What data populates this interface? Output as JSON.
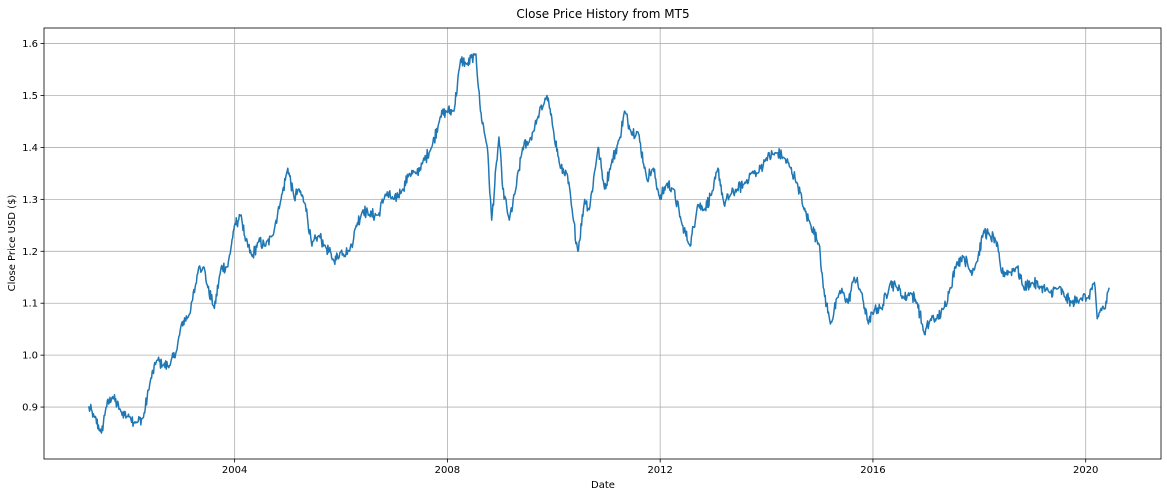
{
  "chart_data": {
    "type": "line",
    "title": "Close Price History from MT5",
    "xlabel": "Date",
    "ylabel": "Close Price USD ($)",
    "grid": true,
    "legend": "none",
    "xlim": [
      "2000-06-01",
      "2021-06-01"
    ],
    "ylim": [
      0.8,
      1.63
    ],
    "x_ticks": [
      "2004",
      "2008",
      "2012",
      "2016",
      "2020"
    ],
    "y_ticks": [
      "0.9",
      "1.0",
      "1.1",
      "1.2",
      "1.3",
      "1.4",
      "1.5",
      "1.6"
    ],
    "series": [
      {
        "color": "#1f77b4",
        "points": [
          [
            "2001-04-01",
            0.9
          ],
          [
            "2001-05-15",
            0.88
          ],
          [
            "2001-07-01",
            0.85
          ],
          [
            "2001-08-01",
            0.9
          ],
          [
            "2001-09-15",
            0.92
          ],
          [
            "2001-11-15",
            0.89
          ],
          [
            "2002-01-15",
            0.88
          ],
          [
            "2002-03-01",
            0.87
          ],
          [
            "2002-04-15",
            0.88
          ],
          [
            "2002-06-01",
            0.95
          ],
          [
            "2002-07-15",
            0.99
          ],
          [
            "2002-09-01",
            0.98
          ],
          [
            "2002-10-15",
            0.98
          ],
          [
            "2002-12-01",
            1.01
          ],
          [
            "2003-01-01",
            1.06
          ],
          [
            "2003-03-01",
            1.08
          ],
          [
            "2003-05-01",
            1.17
          ],
          [
            "2003-06-01",
            1.17
          ],
          [
            "2003-07-01",
            1.13
          ],
          [
            "2003-08-15",
            1.09
          ],
          [
            "2003-10-01",
            1.17
          ],
          [
            "2003-11-15",
            1.17
          ],
          [
            "2003-12-31",
            1.25
          ],
          [
            "2004-02-15",
            1.27
          ],
          [
            "2004-03-15",
            1.22
          ],
          [
            "2004-05-01",
            1.19
          ],
          [
            "2004-06-15",
            1.22
          ],
          [
            "2004-08-01",
            1.21
          ],
          [
            "2004-09-15",
            1.23
          ],
          [
            "2004-11-15",
            1.3
          ],
          [
            "2004-12-31",
            1.36
          ],
          [
            "2005-02-15",
            1.3
          ],
          [
            "2005-03-15",
            1.32
          ],
          [
            "2005-05-01",
            1.29
          ],
          [
            "2005-06-15",
            1.21
          ],
          [
            "2005-08-01",
            1.23
          ],
          [
            "2005-09-15",
            1.21
          ],
          [
            "2005-11-15",
            1.18
          ],
          [
            "2006-01-01",
            1.2
          ],
          [
            "2006-03-01",
            1.2
          ],
          [
            "2006-04-15",
            1.25
          ],
          [
            "2006-06-01",
            1.28
          ],
          [
            "2006-07-15",
            1.27
          ],
          [
            "2006-09-15",
            1.27
          ],
          [
            "2006-11-01",
            1.31
          ],
          [
            "2007-01-01",
            1.3
          ],
          [
            "2007-03-01",
            1.32
          ],
          [
            "2007-04-15",
            1.35
          ],
          [
            "2007-06-01",
            1.35
          ],
          [
            "2007-07-15",
            1.37
          ],
          [
            "2007-09-15",
            1.4
          ],
          [
            "2007-11-15",
            1.46
          ],
          [
            "2007-12-31",
            1.47
          ],
          [
            "2008-02-15",
            1.47
          ],
          [
            "2008-04-01",
            1.57
          ],
          [
            "2008-05-15",
            1.56
          ],
          [
            "2008-07-15",
            1.58
          ],
          [
            "2008-08-15",
            1.47
          ],
          [
            "2008-10-01",
            1.4
          ],
          [
            "2008-10-31",
            1.26
          ],
          [
            "2008-12-20",
            1.42
          ],
          [
            "2009-01-15",
            1.32
          ],
          [
            "2009-03-01",
            1.26
          ],
          [
            "2009-04-15",
            1.32
          ],
          [
            "2009-06-01",
            1.4
          ],
          [
            "2009-07-15",
            1.41
          ],
          [
            "2009-09-15",
            1.46
          ],
          [
            "2009-11-15",
            1.5
          ],
          [
            "2009-12-31",
            1.43
          ],
          [
            "2010-02-15",
            1.36
          ],
          [
            "2010-04-01",
            1.35
          ],
          [
            "2010-05-15",
            1.26
          ],
          [
            "2010-06-15",
            1.2
          ],
          [
            "2010-08-01",
            1.3
          ],
          [
            "2010-09-01",
            1.28
          ],
          [
            "2010-11-01",
            1.4
          ],
          [
            "2010-12-15",
            1.32
          ],
          [
            "2011-02-01",
            1.37
          ],
          [
            "2011-04-01",
            1.42
          ],
          [
            "2011-05-01",
            1.47
          ],
          [
            "2011-06-15",
            1.43
          ],
          [
            "2011-08-01",
            1.43
          ],
          [
            "2011-10-01",
            1.34
          ],
          [
            "2011-11-15",
            1.36
          ],
          [
            "2011-12-31",
            1.3
          ],
          [
            "2012-02-15",
            1.33
          ],
          [
            "2012-04-01",
            1.32
          ],
          [
            "2012-06-01",
            1.25
          ],
          [
            "2012-07-25",
            1.21
          ],
          [
            "2012-09-15",
            1.29
          ],
          [
            "2012-11-01",
            1.28
          ],
          [
            "2013-01-01",
            1.32
          ],
          [
            "2013-02-01",
            1.36
          ],
          [
            "2013-03-15",
            1.29
          ],
          [
            "2013-05-01",
            1.31
          ],
          [
            "2013-06-15",
            1.32
          ],
          [
            "2013-08-01",
            1.33
          ],
          [
            "2013-09-15",
            1.35
          ],
          [
            "2013-11-01",
            1.35
          ],
          [
            "2013-12-31",
            1.38
          ],
          [
            "2014-03-15",
            1.39
          ],
          [
            "2014-05-01",
            1.38
          ],
          [
            "2014-06-15",
            1.36
          ],
          [
            "2014-08-01",
            1.33
          ],
          [
            "2014-09-15",
            1.28
          ],
          [
            "2014-11-01",
            1.25
          ],
          [
            "2014-12-31",
            1.21
          ],
          [
            "2015-01-25",
            1.13
          ],
          [
            "2015-03-15",
            1.06
          ],
          [
            "2015-05-15",
            1.12
          ],
          [
            "2015-06-15",
            1.12
          ],
          [
            "2015-07-15",
            1.1
          ],
          [
            "2015-08-25",
            1.15
          ],
          [
            "2015-10-15",
            1.12
          ],
          [
            "2015-12-01",
            1.06
          ],
          [
            "2016-01-15",
            1.09
          ],
          [
            "2016-03-01",
            1.09
          ],
          [
            "2016-05-01",
            1.14
          ],
          [
            "2016-06-15",
            1.13
          ],
          [
            "2016-08-01",
            1.11
          ],
          [
            "2016-09-15",
            1.12
          ],
          [
            "2016-11-01",
            1.1
          ],
          [
            "2016-12-20",
            1.04
          ],
          [
            "2017-02-01",
            1.07
          ],
          [
            "2017-03-15",
            1.07
          ],
          [
            "2017-05-01",
            1.09
          ],
          [
            "2017-06-15",
            1.13
          ],
          [
            "2017-08-01",
            1.18
          ],
          [
            "2017-09-15",
            1.19
          ],
          [
            "2017-11-01",
            1.16
          ],
          [
            "2017-12-15",
            1.18
          ],
          [
            "2018-02-01",
            1.24
          ],
          [
            "2018-03-15",
            1.23
          ],
          [
            "2018-04-25",
            1.22
          ],
          [
            "2018-06-01",
            1.16
          ],
          [
            "2018-08-01",
            1.16
          ],
          [
            "2018-09-15",
            1.17
          ],
          [
            "2018-11-01",
            1.13
          ],
          [
            "2019-01-01",
            1.14
          ],
          [
            "2019-03-01",
            1.13
          ],
          [
            "2019-05-01",
            1.12
          ],
          [
            "2019-07-01",
            1.13
          ],
          [
            "2019-08-15",
            1.11
          ],
          [
            "2019-10-01",
            1.1
          ],
          [
            "2019-12-01",
            1.11
          ],
          [
            "2020-01-15",
            1.11
          ],
          [
            "2020-03-01",
            1.14
          ],
          [
            "2020-03-20",
            1.07
          ],
          [
            "2020-04-15",
            1.09
          ],
          [
            "2020-05-15",
            1.09
          ],
          [
            "2020-06-10",
            1.13
          ]
        ]
      }
    ]
  }
}
